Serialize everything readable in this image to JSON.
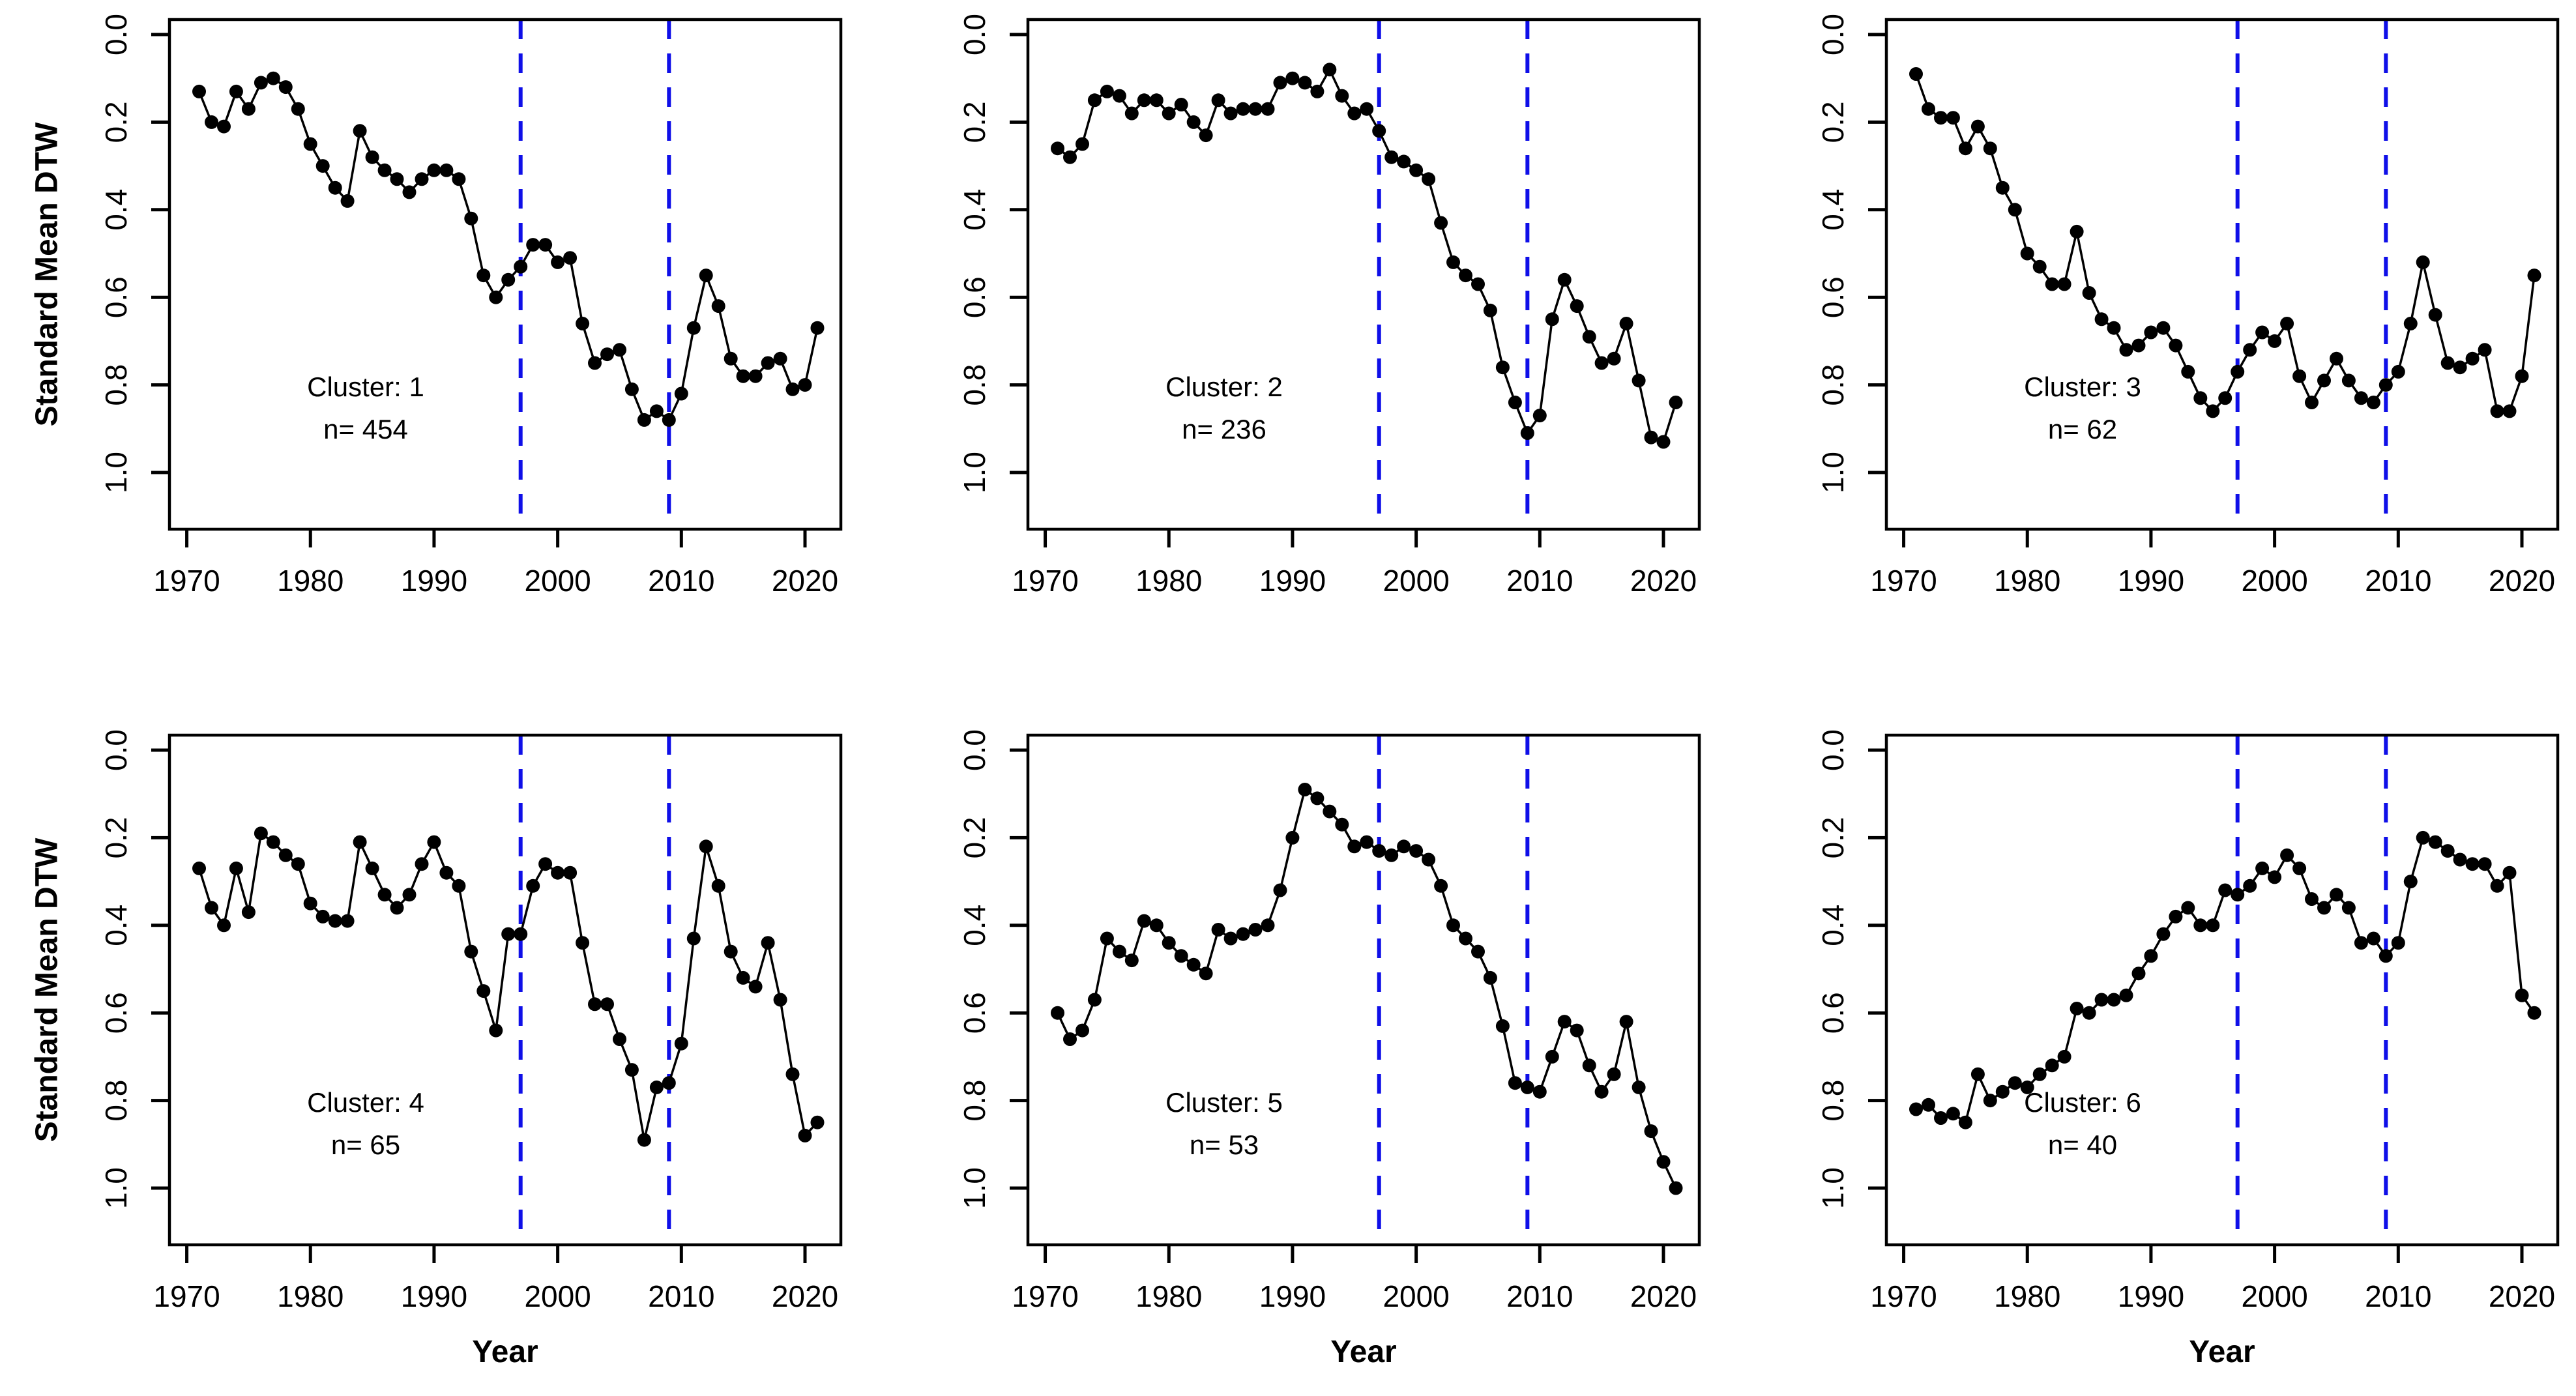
{
  "figure": {
    "background": "#ffffff",
    "rows": 2,
    "cols": 3,
    "line_color": "#000000",
    "marker": "filled-circle",
    "vline_color": "#0f0fe8",
    "vline_style": "dashed"
  },
  "chart_data": {
    "type": "line",
    "xlabel": "Year",
    "ylabel": "Standard Mean DTW",
    "x_ticks": [
      1970,
      1980,
      1990,
      2000,
      2010,
      2020
    ],
    "y_ticks": [
      "0.0",
      "0.2",
      "0.4",
      "0.6",
      "0.8",
      "1.0"
    ],
    "y_tick_values": [
      0.0,
      0.2,
      0.4,
      0.6,
      0.8,
      1.0
    ],
    "ylim": [
      0.0,
      1.0
    ],
    "y_axis_reversed": true,
    "xlim": [
      1970,
      2021
    ],
    "grid": "off",
    "legend_position": "none",
    "vlines": {
      "x": [
        1997,
        2009
      ],
      "style": "dashed",
      "color": "#0f0fe8"
    },
    "x": [
      1971,
      1972,
      1973,
      1974,
      1975,
      1976,
      1977,
      1978,
      1979,
      1980,
      1981,
      1982,
      1983,
      1984,
      1985,
      1986,
      1987,
      1988,
      1989,
      1990,
      1991,
      1992,
      1993,
      1994,
      1995,
      1996,
      1997,
      1998,
      1999,
      2000,
      2001,
      2002,
      2003,
      2004,
      2005,
      2006,
      2007,
      2008,
      2009,
      2010,
      2011,
      2012,
      2013,
      2014,
      2015,
      2016,
      2017,
      2018,
      2019,
      2020,
      2021
    ],
    "series": [
      {
        "name": "Cluster: 1",
        "cluster": 1,
        "n": 454,
        "n_label": "n= 454",
        "values": [
          0.13,
          0.2,
          0.21,
          0.13,
          0.17,
          0.11,
          0.1,
          0.12,
          0.17,
          0.25,
          0.3,
          0.35,
          0.38,
          0.22,
          0.28,
          0.31,
          0.33,
          0.36,
          0.33,
          0.31,
          0.31,
          0.33,
          0.42,
          0.55,
          0.6,
          0.56,
          0.53,
          0.48,
          0.48,
          0.52,
          0.51,
          0.66,
          0.75,
          0.73,
          0.72,
          0.81,
          0.88,
          0.86,
          0.88,
          0.82,
          0.67,
          0.55,
          0.62,
          0.74,
          0.78,
          0.78,
          0.75,
          0.74,
          0.81,
          0.8,
          0.67
        ]
      },
      {
        "name": "Cluster: 2",
        "cluster": 2,
        "n": 236,
        "n_label": "n= 236",
        "values": [
          0.26,
          0.28,
          0.25,
          0.15,
          0.13,
          0.14,
          0.18,
          0.15,
          0.15,
          0.18,
          0.16,
          0.2,
          0.23,
          0.15,
          0.18,
          0.17,
          0.17,
          0.17,
          0.11,
          0.1,
          0.11,
          0.13,
          0.08,
          0.14,
          0.18,
          0.17,
          0.22,
          0.28,
          0.29,
          0.31,
          0.33,
          0.43,
          0.52,
          0.55,
          0.57,
          0.63,
          0.76,
          0.84,
          0.91,
          0.87,
          0.65,
          0.56,
          0.62,
          0.69,
          0.75,
          0.74,
          0.66,
          0.79,
          0.92,
          0.93,
          0.84
        ]
      },
      {
        "name": "Cluster: 3",
        "cluster": 3,
        "n": 62,
        "n_label": "n= 62",
        "values": [
          0.09,
          0.17,
          0.19,
          0.19,
          0.26,
          0.21,
          0.26,
          0.35,
          0.4,
          0.5,
          0.53,
          0.57,
          0.57,
          0.45,
          0.59,
          0.65,
          0.67,
          0.72,
          0.71,
          0.68,
          0.67,
          0.71,
          0.77,
          0.83,
          0.86,
          0.83,
          0.77,
          0.72,
          0.68,
          0.7,
          0.66,
          0.78,
          0.84,
          0.79,
          0.74,
          0.79,
          0.83,
          0.84,
          0.8,
          0.77,
          0.66,
          0.52,
          0.64,
          0.75,
          0.76,
          0.74,
          0.72,
          0.86,
          0.86,
          0.78,
          0.55
        ]
      },
      {
        "name": "Cluster: 4",
        "cluster": 4,
        "n": 65,
        "n_label": "n= 65",
        "values": [
          0.27,
          0.36,
          0.4,
          0.27,
          0.37,
          0.19,
          0.21,
          0.24,
          0.26,
          0.35,
          0.38,
          0.39,
          0.39,
          0.21,
          0.27,
          0.33,
          0.36,
          0.33,
          0.26,
          0.21,
          0.28,
          0.31,
          0.46,
          0.55,
          0.64,
          0.42,
          0.42,
          0.31,
          0.26,
          0.28,
          0.28,
          0.44,
          0.58,
          0.58,
          0.66,
          0.73,
          0.89,
          0.77,
          0.76,
          0.67,
          0.43,
          0.22,
          0.31,
          0.46,
          0.52,
          0.54,
          0.44,
          0.57,
          0.74,
          0.88,
          0.85
        ]
      },
      {
        "name": "Cluster: 5",
        "cluster": 5,
        "n": 53,
        "n_label": "n= 53",
        "values": [
          0.6,
          0.66,
          0.64,
          0.57,
          0.43,
          0.46,
          0.48,
          0.39,
          0.4,
          0.44,
          0.47,
          0.49,
          0.51,
          0.41,
          0.43,
          0.42,
          0.41,
          0.4,
          0.32,
          0.2,
          0.09,
          0.11,
          0.14,
          0.17,
          0.22,
          0.21,
          0.23,
          0.24,
          0.22,
          0.23,
          0.25,
          0.31,
          0.4,
          0.43,
          0.46,
          0.52,
          0.63,
          0.76,
          0.77,
          0.78,
          0.7,
          0.62,
          0.64,
          0.72,
          0.78,
          0.74,
          0.62,
          0.77,
          0.87,
          0.94,
          1.0
        ]
      },
      {
        "name": "Cluster: 6",
        "cluster": 6,
        "n": 40,
        "n_label": "n= 40",
        "values": [
          0.82,
          0.81,
          0.84,
          0.83,
          0.85,
          0.74,
          0.8,
          0.78,
          0.76,
          0.77,
          0.74,
          0.72,
          0.7,
          0.59,
          0.6,
          0.57,
          0.57,
          0.56,
          0.51,
          0.47,
          0.42,
          0.38,
          0.36,
          0.4,
          0.4,
          0.32,
          0.33,
          0.31,
          0.27,
          0.29,
          0.24,
          0.27,
          0.34,
          0.36,
          0.33,
          0.36,
          0.44,
          0.43,
          0.47,
          0.44,
          0.3,
          0.2,
          0.21,
          0.23,
          0.25,
          0.26,
          0.26,
          0.31,
          0.28,
          0.56,
          0.6
        ]
      }
    ]
  }
}
